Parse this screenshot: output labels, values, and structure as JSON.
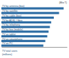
{
  "chart_data": {
    "type": "bar",
    "orientation": "horizontal",
    "x_label": "(Mio T)",
    "categories": [
      "TV by antenna (box)",
      "TV by satellite",
      "TV by cable (box)",
      "TV by ADSL / fibre",
      "TV by telephony",
      "TV by box (mobile)",
      "TV on tablet",
      "TV on smartphone",
      "TV on PC"
    ],
    "values": [
      95,
      88,
      80,
      76,
      74,
      72,
      70,
      67,
      64
    ],
    "color": "#2e6da4",
    "xlim": [
      0,
      100
    ],
    "xticks": [],
    "tick_labels": false,
    "grid": false,
    "annotations": [
      "TV total users",
      "(millions)"
    ]
  }
}
